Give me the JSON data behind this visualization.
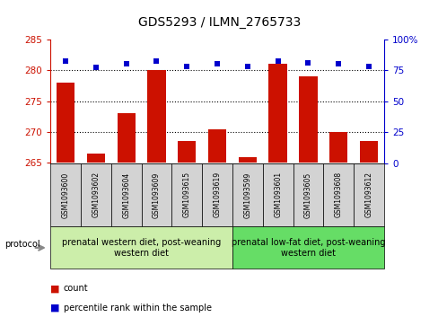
{
  "title": "GDS5293 / ILMN_2765733",
  "samples": [
    "GSM1093600",
    "GSM1093602",
    "GSM1093604",
    "GSM1093609",
    "GSM1093615",
    "GSM1093619",
    "GSM1093599",
    "GSM1093601",
    "GSM1093605",
    "GSM1093608",
    "GSM1093612"
  ],
  "counts": [
    278.0,
    266.5,
    273.0,
    280.0,
    268.5,
    270.5,
    266.0,
    281.0,
    279.0,
    270.0,
    268.5
  ],
  "percentiles": [
    82,
    77,
    80,
    82,
    78,
    80,
    78,
    82,
    81,
    80,
    78
  ],
  "ylim_left": [
    265,
    285
  ],
  "ylim_right": [
    0,
    100
  ],
  "yticks_left": [
    265,
    270,
    275,
    280,
    285
  ],
  "yticks_right": [
    0,
    25,
    50,
    75,
    100
  ],
  "bar_color": "#cc1100",
  "dot_color": "#0000cc",
  "group1_label": "prenatal western diet, post-weaning\nwestern diet",
  "group2_label": "prenatal low-fat diet, post-weaning\nwestern diet",
  "group1_count": 6,
  "group2_count": 5,
  "protocol_label": "protocol",
  "legend_count": "count",
  "legend_percentile": "percentile rank within the sample",
  "bg_color": "#ffffff",
  "plot_bg": "#ffffff",
  "group1_bg": "#cceeaa",
  "group2_bg": "#66dd66",
  "sample_bg": "#d3d3d3",
  "title_fontsize": 10,
  "label_fontsize": 7,
  "tick_fontsize": 7.5
}
